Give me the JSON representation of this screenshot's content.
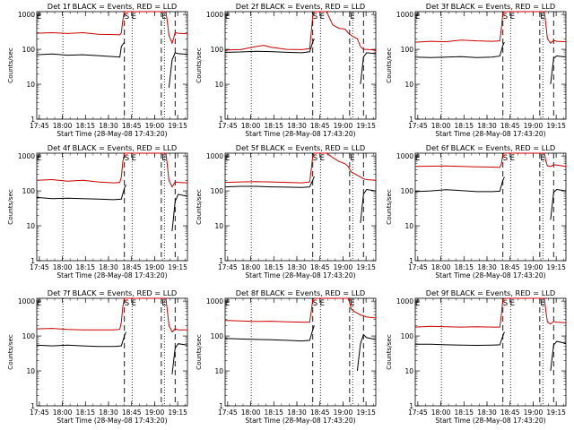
{
  "common": {
    "ylabel": "Counts/sec",
    "xlabel": "Start Time (28-May-08 17:43:20)",
    "xticks": [
      "17:45",
      "18:00",
      "18:15",
      "18:30",
      "18:45",
      "19:00",
      "19:15"
    ],
    "yticks": [
      "1",
      "10",
      "100",
      "1000"
    ],
    "markers": [
      "E",
      "S",
      "E",
      "E"
    ],
    "colors": {
      "events": "#000000",
      "lld": "#cc0000"
    }
  },
  "chart_data": [
    {
      "type": "line",
      "title": "Det 1f BLACK = Events, RED = LLD",
      "xlabel": "Start Time (28-May-08 17:43:20)",
      "ylabel": "Counts/sec",
      "x_unit": "minutes after 17:43:20",
      "ylim": [
        1,
        1000
      ],
      "yscale": "log",
      "xlim": [
        0,
        98
      ],
      "dotted_x": [
        17,
        62,
        83
      ],
      "dashed_x": [
        57,
        81,
        90
      ],
      "series": [
        {
          "name": "Events",
          "color": "#000000",
          "x": [
            0,
            10,
            20,
            30,
            40,
            50,
            54,
            55,
            57,
            58,
            60,
            70,
            78,
            81,
            82,
            84,
            86,
            88,
            90,
            92,
            98
          ],
          "y": [
            70,
            74,
            68,
            70,
            66,
            62,
            60,
            120,
            160,
            null,
            null,
            null,
            null,
            null,
            null,
            null,
            8,
            50,
            80,
            75,
            72
          ]
        },
        {
          "name": "LLD",
          "color": "#cc0000",
          "x": [
            0,
            10,
            20,
            30,
            40,
            50,
            54,
            55,
            56,
            57,
            58,
            60,
            70,
            78,
            80,
            82,
            84,
            85,
            86,
            88,
            90,
            92,
            98
          ],
          "y": [
            290,
            300,
            285,
            300,
            270,
            265,
            260,
            300,
            700,
            1200,
            1200,
            1200,
            1200,
            1200,
            1200,
            1200,
            1200,
            600,
            250,
            150,
            300,
            290,
            280
          ]
        }
      ]
    },
    {
      "type": "line",
      "title": "Det 2f BLACK = Events, RED = LLD",
      "xlabel": "Start Time (28-May-08 17:43:20)",
      "ylabel": "Counts/sec",
      "x_unit": "minutes after 17:43:20",
      "ylim": [
        1,
        1000
      ],
      "yscale": "log",
      "xlim": [
        0,
        98
      ],
      "dotted_x": [
        17,
        62,
        83
      ],
      "dashed_x": [
        57,
        81,
        90
      ],
      "series": [
        {
          "name": "Events",
          "color": "#000000",
          "x": [
            0,
            10,
            20,
            30,
            40,
            50,
            55,
            57,
            58,
            60,
            70,
            78,
            81,
            82,
            84,
            86,
            88,
            90,
            92,
            98
          ],
          "y": [
            82,
            84,
            88,
            86,
            82,
            80,
            85,
            160,
            200,
            null,
            null,
            null,
            null,
            null,
            null,
            null,
            10,
            60,
            80,
            75
          ]
        },
        {
          "name": "LLD",
          "color": "#cc0000",
          "x": [
            0,
            10,
            20,
            25,
            30,
            40,
            50,
            55,
            56,
            57,
            58,
            60,
            62,
            66,
            70,
            74,
            78,
            80,
            82,
            86,
            88,
            90,
            92,
            98
          ],
          "y": [
            95,
            98,
            120,
            130,
            115,
            100,
            98,
            105,
            300,
            900,
            1200,
            1200,
            1200,
            1200,
            500,
            400,
            380,
            300,
            250,
            200,
            120,
            100,
            100,
            95
          ]
        }
      ]
    },
    {
      "type": "line",
      "title": "Det 3f BLACK = Events, RED = LLD",
      "xlabel": "Start Time (28-May-08 17:43:20)",
      "ylabel": "Counts/sec",
      "x_unit": "minutes after 17:43:20",
      "ylim": [
        1,
        1000
      ],
      "yscale": "log",
      "xlim": [
        0,
        98
      ],
      "dotted_x": [
        17,
        62,
        83
      ],
      "dashed_x": [
        57,
        81,
        90
      ],
      "series": [
        {
          "name": "Events",
          "color": "#000000",
          "x": [
            0,
            10,
            20,
            30,
            40,
            50,
            55,
            57,
            58,
            60,
            70,
            78,
            81,
            82,
            84,
            86,
            88,
            90,
            92,
            98
          ],
          "y": [
            60,
            58,
            60,
            62,
            58,
            60,
            64,
            130,
            160,
            null,
            null,
            null,
            null,
            null,
            null,
            null,
            10,
            55,
            65,
            60
          ]
        },
        {
          "name": "LLD",
          "color": "#cc0000",
          "x": [
            0,
            10,
            20,
            30,
            40,
            50,
            55,
            56,
            57,
            58,
            60,
            70,
            78,
            80,
            82,
            84,
            85,
            86,
            88,
            90,
            92,
            98
          ],
          "y": [
            160,
            170,
            165,
            185,
            175,
            170,
            175,
            400,
            1100,
            1200,
            1200,
            1200,
            1200,
            1200,
            1200,
            1200,
            500,
            200,
            150,
            180,
            170,
            165
          ]
        }
      ]
    },
    {
      "type": "line",
      "title": "Det 4f BLACK = Events, RED = LLD",
      "xlabel": "Start Time (28-May-08 17:43:20)",
      "ylabel": "Counts/sec",
      "x_unit": "minutes after 17:43:20",
      "ylim": [
        1,
        1000
      ],
      "yscale": "log",
      "xlim": [
        0,
        98
      ],
      "dotted_x": [
        17,
        62,
        83
      ],
      "dashed_x": [
        57,
        81,
        90
      ],
      "series": [
        {
          "name": "Events",
          "color": "#000000",
          "x": [
            0,
            10,
            20,
            30,
            40,
            50,
            55,
            57,
            58,
            60,
            70,
            78,
            81,
            82,
            84,
            86,
            88,
            90,
            92,
            98
          ],
          "y": [
            65,
            60,
            62,
            60,
            58,
            56,
            58,
            120,
            150,
            null,
            null,
            null,
            null,
            null,
            null,
            null,
            7,
            50,
            80,
            70
          ]
        },
        {
          "name": "LLD",
          "color": "#cc0000",
          "x": [
            0,
            10,
            20,
            30,
            40,
            50,
            54,
            55,
            56,
            57,
            58,
            60,
            70,
            78,
            80,
            82,
            84,
            85,
            86,
            88,
            90,
            92,
            98
          ],
          "y": [
            200,
            210,
            190,
            200,
            180,
            170,
            175,
            250,
            700,
            1200,
            1200,
            1200,
            1200,
            1200,
            1200,
            1200,
            1200,
            500,
            200,
            130,
            180,
            175,
            170
          ]
        }
      ]
    },
    {
      "type": "line",
      "title": "Det 5f BLACK = Events, RED = LLD",
      "xlabel": "Start Time (28-May-08 17:43:20)",
      "ylabel": "Counts/sec",
      "x_unit": "minutes after 17:43:20",
      "ylim": [
        1,
        1000
      ],
      "yscale": "log",
      "xlim": [
        0,
        98
      ],
      "dotted_x": [
        17,
        62,
        83
      ],
      "dashed_x": [
        57,
        81,
        90
      ],
      "series": [
        {
          "name": "Events",
          "color": "#000000",
          "x": [
            0,
            10,
            20,
            30,
            40,
            50,
            55,
            57,
            58,
            60,
            70,
            78,
            81,
            82,
            84,
            86,
            88,
            90,
            92,
            98
          ],
          "y": [
            130,
            135,
            135,
            130,
            128,
            125,
            130,
            200,
            260,
            null,
            null,
            null,
            null,
            null,
            null,
            null,
            12,
            80,
            110,
            100
          ]
        },
        {
          "name": "LLD",
          "color": "#cc0000",
          "x": [
            0,
            10,
            20,
            30,
            40,
            50,
            55,
            56,
            57,
            58,
            60,
            62,
            66,
            70,
            74,
            78,
            80,
            82,
            86,
            88,
            90,
            92,
            98
          ],
          "y": [
            175,
            180,
            185,
            180,
            175,
            170,
            180,
            400,
            1000,
            1200,
            1200,
            1200,
            1200,
            900,
            700,
            600,
            500,
            350,
            280,
            250,
            220,
            210,
            200
          ]
        }
      ]
    },
    {
      "type": "line",
      "title": "Det 6f BLACK = Events, RED = LLD",
      "xlabel": "Start Time (28-May-08 17:43:20)",
      "ylabel": "Counts/sec",
      "x_unit": "minutes after 17:43:20",
      "ylim": [
        1,
        1000
      ],
      "yscale": "log",
      "xlim": [
        0,
        98
      ],
      "dotted_x": [
        17,
        62,
        83
      ],
      "dashed_x": [
        57,
        81,
        90
      ],
      "series": [
        {
          "name": "Events",
          "color": "#000000",
          "x": [
            0,
            10,
            20,
            30,
            40,
            50,
            55,
            57,
            58,
            60,
            70,
            78,
            81,
            82,
            84,
            86,
            88,
            90,
            92,
            98
          ],
          "y": [
            95,
            100,
            108,
            102,
            95,
            95,
            98,
            200,
            250,
            null,
            null,
            null,
            null,
            null,
            null,
            null,
            15,
            90,
            110,
            100
          ]
        },
        {
          "name": "LLD",
          "color": "#cc0000",
          "x": [
            0,
            10,
            20,
            30,
            40,
            50,
            55,
            56,
            57,
            58,
            60,
            70,
            78,
            80,
            82,
            84,
            85,
            86,
            88,
            90,
            92,
            98
          ],
          "y": [
            500,
            510,
            520,
            500,
            490,
            480,
            470,
            600,
            1100,
            1200,
            1200,
            1200,
            1200,
            1200,
            1200,
            1200,
            700,
            520,
            500,
            560,
            550,
            500
          ]
        }
      ]
    },
    {
      "type": "line",
      "title": "Det 7f BLACK = Events, RED = LLD",
      "xlabel": "Start Time (28-May-08 17:43:20)",
      "ylabel": "Counts/sec",
      "x_unit": "minutes after 17:43:20",
      "ylim": [
        1,
        1000
      ],
      "yscale": "log",
      "xlim": [
        0,
        98
      ],
      "dotted_x": [
        17,
        62,
        83
      ],
      "dashed_x": [
        57,
        81,
        90
      ],
      "series": [
        {
          "name": "Events",
          "color": "#000000",
          "x": [
            0,
            10,
            20,
            30,
            40,
            50,
            55,
            57,
            58,
            60,
            70,
            78,
            81,
            82,
            84,
            86,
            88,
            90,
            92,
            98
          ],
          "y": [
            55,
            52,
            55,
            52,
            50,
            50,
            52,
            100,
            130,
            null,
            null,
            null,
            null,
            null,
            null,
            null,
            8,
            45,
            60,
            55
          ]
        },
        {
          "name": "LLD",
          "color": "#cc0000",
          "x": [
            0,
            10,
            20,
            30,
            40,
            50,
            54,
            55,
            56,
            57,
            58,
            60,
            70,
            78,
            80,
            82,
            84,
            85,
            86,
            88,
            90,
            92,
            98
          ],
          "y": [
            160,
            165,
            155,
            150,
            150,
            150,
            155,
            250,
            700,
            1200,
            1200,
            1200,
            1200,
            1200,
            1200,
            1200,
            1200,
            500,
            200,
            130,
            160,
            150,
            150
          ]
        }
      ]
    },
    {
      "type": "line",
      "title": "Det 8f BLACK = Events, RED = LLD",
      "xlabel": "Start Time (28-May-08 17:43:20)",
      "ylabel": "Counts/sec",
      "x_unit": "minutes after 17:43:20",
      "ylim": [
        1,
        1000
      ],
      "yscale": "log",
      "xlim": [
        0,
        98
      ],
      "dotted_x": [
        17,
        62,
        83
      ],
      "dashed_x": [
        57,
        81,
        90
      ],
      "series": [
        {
          "name": "Events",
          "color": "#000000",
          "x": [
            0,
            10,
            20,
            30,
            40,
            50,
            55,
            57,
            58,
            60,
            70,
            78,
            80,
            81,
            82,
            84,
            86,
            88,
            90,
            92,
            98
          ],
          "y": [
            85,
            82,
            80,
            78,
            75,
            72,
            75,
            150,
            200,
            null,
            null,
            null,
            null,
            null,
            null,
            null,
            10,
            60,
            110,
            90,
            80
          ]
        },
        {
          "name": "LLD",
          "color": "#cc0000",
          "x": [
            0,
            10,
            20,
            30,
            40,
            50,
            55,
            56,
            57,
            58,
            60,
            70,
            78,
            80,
            81,
            82,
            84,
            86,
            88,
            90,
            92,
            98
          ],
          "y": [
            280,
            270,
            260,
            265,
            255,
            250,
            250,
            500,
            1100,
            1200,
            1200,
            1200,
            1200,
            1200,
            900,
            600,
            500,
            450,
            400,
            380,
            350,
            330
          ]
        }
      ]
    },
    {
      "type": "line",
      "title": "Det 9f BLACK = Events, RED = LLD",
      "xlabel": "Start Time (28-May-08 17:43:20)",
      "ylabel": "Counts/sec",
      "x_unit": "minutes after 17:43:20",
      "ylim": [
        1,
        1000
      ],
      "yscale": "log",
      "xlim": [
        0,
        98
      ],
      "dotted_x": [
        17,
        62,
        83
      ],
      "dashed_x": [
        57,
        81,
        90
      ],
      "series": [
        {
          "name": "Events",
          "color": "#000000",
          "x": [
            0,
            10,
            20,
            30,
            40,
            50,
            55,
            57,
            58,
            60,
            70,
            78,
            81,
            82,
            84,
            86,
            88,
            90,
            92,
            98
          ],
          "y": [
            58,
            58,
            56,
            55,
            54,
            55,
            56,
            100,
            130,
            null,
            null,
            null,
            null,
            null,
            null,
            null,
            10,
            55,
            70,
            62
          ]
        },
        {
          "name": "LLD",
          "color": "#cc0000",
          "x": [
            0,
            10,
            20,
            30,
            40,
            50,
            55,
            56,
            57,
            58,
            60,
            70,
            78,
            80,
            82,
            84,
            85,
            86,
            88,
            90,
            92,
            98
          ],
          "y": [
            180,
            190,
            185,
            180,
            185,
            180,
            180,
            400,
            1100,
            1200,
            1200,
            1200,
            1200,
            1200,
            1200,
            1200,
            500,
            250,
            220,
            260,
            250,
            240
          ]
        }
      ]
    }
  ]
}
